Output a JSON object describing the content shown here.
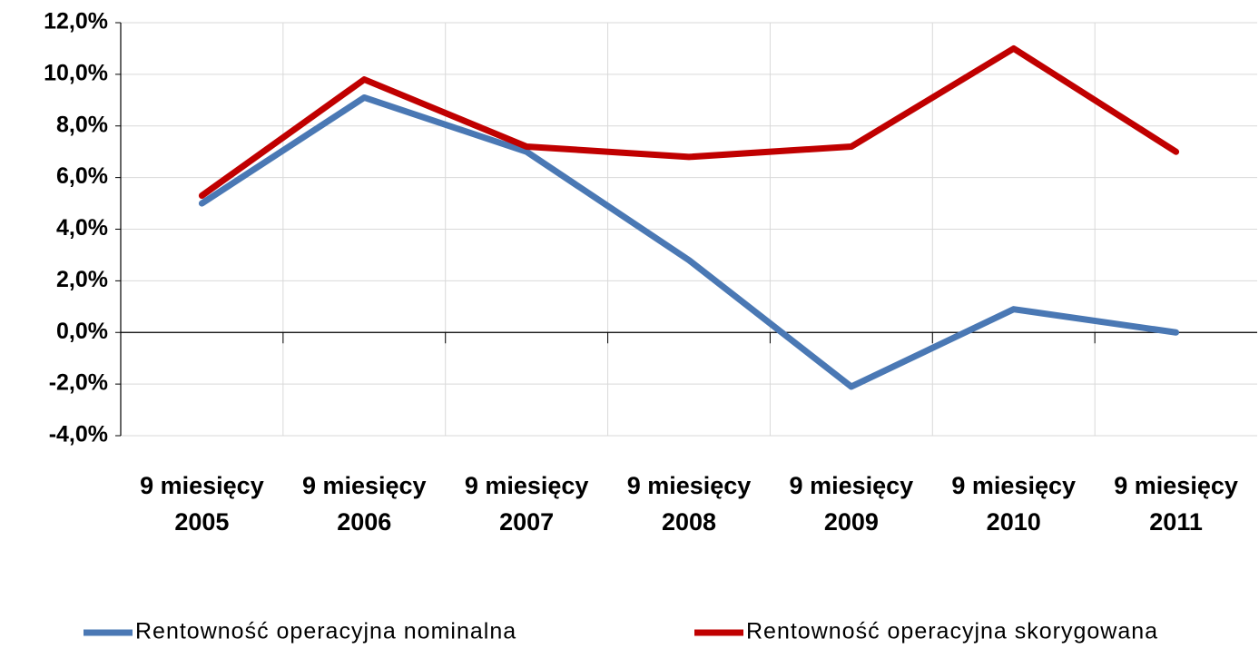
{
  "chart_data": {
    "type": "line",
    "categories": [
      "9 miesięcy 2005",
      "9 miesięcy 2006",
      "9 miesięcy 2007",
      "9 miesięcy 2008",
      "9 miesięcy 2009",
      "9 miesięcy 2010",
      "9 miesięcy 2011"
    ],
    "series": [
      {
        "name": "Rentowność operacyjna nominalna",
        "color": "#4a78b4",
        "values": [
          5.0,
          9.1,
          7.0,
          2.8,
          -2.1,
          0.9,
          0.0
        ]
      },
      {
        "name": "Rentowność operacyjna skorygowana",
        "color": "#c00000",
        "values": [
          5.3,
          9.8,
          7.2,
          6.8,
          7.2,
          11.0,
          7.0
        ]
      }
    ],
    "ylim": [
      -4,
      12
    ],
    "yticks": [
      {
        "value": -4,
        "label": "-4,0%"
      },
      {
        "value": -2,
        "label": "-2,0%"
      },
      {
        "value": 0,
        "label": "0,0%"
      },
      {
        "value": 2,
        "label": "2,0%"
      },
      {
        "value": 4,
        "label": "4,0%"
      },
      {
        "value": 6,
        "label": "6,0%"
      },
      {
        "value": 8,
        "label": "8,0%"
      },
      {
        "value": 10,
        "label": "10,0%"
      },
      {
        "value": 12,
        "label": "12,0%"
      }
    ],
    "grid": true,
    "legend": "bottom"
  }
}
